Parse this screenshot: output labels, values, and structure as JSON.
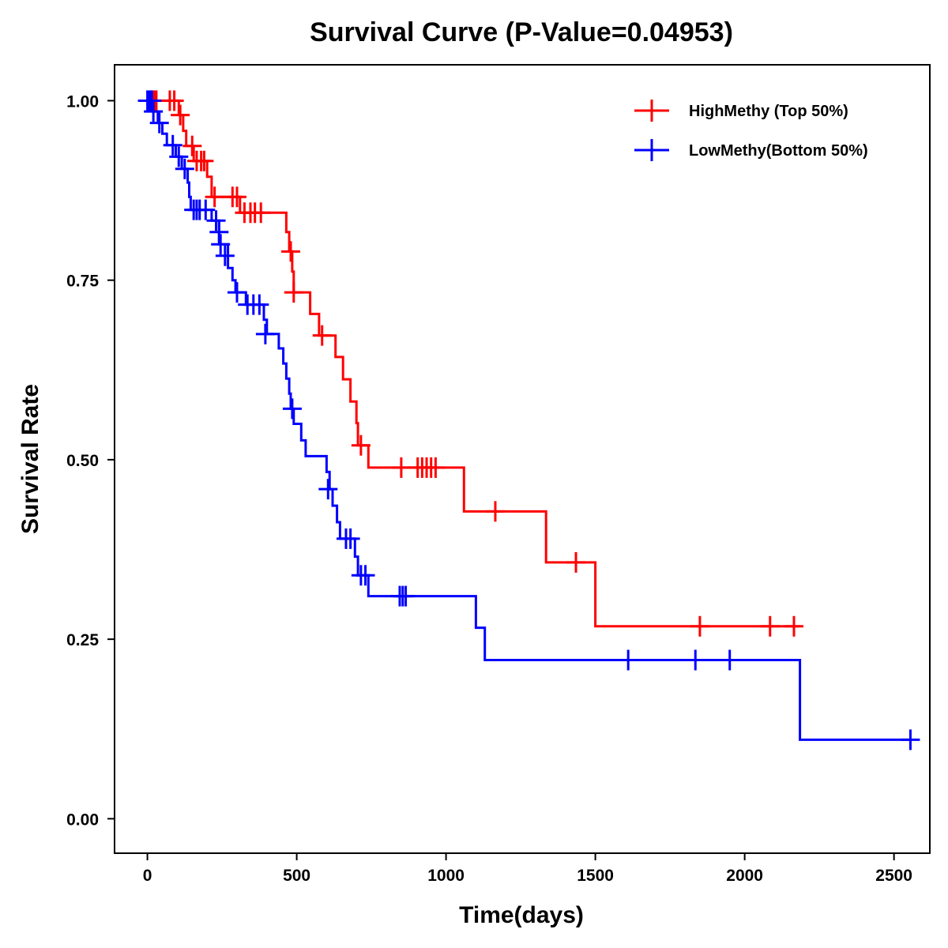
{
  "chart_data": {
    "type": "line",
    "title": "Survival Curve (P-Value=0.04953)",
    "xlabel": "Time(days)",
    "ylabel": "Survival Rate",
    "xlim": [
      -110,
      2620
    ],
    "ylim": [
      -0.048,
      1.05
    ],
    "x_ticks": [
      0,
      500,
      1000,
      1500,
      2000,
      2500
    ],
    "x_tick_labels": [
      "0",
      "500",
      "1000",
      "1500",
      "2000",
      "2500"
    ],
    "y_ticks": [
      0,
      0.25,
      0.5,
      0.75,
      1.0
    ],
    "y_tick_labels": [
      "0.00",
      "0.25",
      "0.50",
      "0.75",
      "1.00"
    ],
    "grid": false,
    "legend_position": "top-right",
    "series": [
      {
        "name": "HighMethy (Top 50%)",
        "color": "#ff0000",
        "steps": [
          [
            0,
            1.0
          ],
          [
            105,
            0.98
          ],
          [
            120,
            0.958
          ],
          [
            130,
            0.937
          ],
          [
            155,
            0.916
          ],
          [
            200,
            0.894
          ],
          [
            215,
            0.866
          ],
          [
            310,
            0.844
          ],
          [
            465,
            0.817
          ],
          [
            475,
            0.79
          ],
          [
            485,
            0.762
          ],
          [
            490,
            0.733
          ],
          [
            545,
            0.703
          ],
          [
            575,
            0.673
          ],
          [
            630,
            0.643
          ],
          [
            655,
            0.612
          ],
          [
            680,
            0.581
          ],
          [
            700,
            0.551
          ],
          [
            705,
            0.52
          ],
          [
            740,
            0.489
          ],
          [
            1060,
            0.428
          ],
          [
            1335,
            0.357
          ],
          [
            1500,
            0.268
          ],
          [
            2185,
            0.268
          ]
        ],
        "censored": [
          [
            10,
            1.0
          ],
          [
            20,
            1.0
          ],
          [
            25,
            1.0
          ],
          [
            30,
            1.0
          ],
          [
            75,
            1.0
          ],
          [
            90,
            1.0
          ],
          [
            110,
            0.98
          ],
          [
            150,
            0.937
          ],
          [
            165,
            0.916
          ],
          [
            180,
            0.916
          ],
          [
            190,
            0.916
          ],
          [
            225,
            0.866
          ],
          [
            285,
            0.866
          ],
          [
            300,
            0.866
          ],
          [
            325,
            0.844
          ],
          [
            345,
            0.844
          ],
          [
            360,
            0.844
          ],
          [
            380,
            0.844
          ],
          [
            480,
            0.79
          ],
          [
            490,
            0.733
          ],
          [
            585,
            0.673
          ],
          [
            715,
            0.52
          ],
          [
            850,
            0.489
          ],
          [
            905,
            0.489
          ],
          [
            920,
            0.489
          ],
          [
            935,
            0.489
          ],
          [
            950,
            0.489
          ],
          [
            965,
            0.489
          ],
          [
            1165,
            0.428
          ],
          [
            1435,
            0.357
          ],
          [
            1850,
            0.268
          ],
          [
            2085,
            0.268
          ],
          [
            2165,
            0.268
          ]
        ]
      },
      {
        "name": "LowMethy(Bottom 50%)",
        "color": "#0000ff",
        "steps": [
          [
            0,
            1.0
          ],
          [
            25,
            0.985
          ],
          [
            35,
            0.969
          ],
          [
            50,
            0.954
          ],
          [
            65,
            0.938
          ],
          [
            95,
            0.922
          ],
          [
            115,
            0.905
          ],
          [
            135,
            0.886
          ],
          [
            140,
            0.866
          ],
          [
            145,
            0.848
          ],
          [
            185,
            0.848
          ],
          [
            215,
            0.833
          ],
          [
            240,
            0.8
          ],
          [
            270,
            0.767
          ],
          [
            285,
            0.75
          ],
          [
            295,
            0.733
          ],
          [
            330,
            0.716
          ],
          [
            390,
            0.695
          ],
          [
            400,
            0.675
          ],
          [
            440,
            0.655
          ],
          [
            455,
            0.634
          ],
          [
            465,
            0.613
          ],
          [
            475,
            0.592
          ],
          [
            480,
            0.571
          ],
          [
            490,
            0.55
          ],
          [
            515,
            0.527
          ],
          [
            530,
            0.505
          ],
          [
            600,
            0.483
          ],
          [
            610,
            0.459
          ],
          [
            620,
            0.436
          ],
          [
            635,
            0.413
          ],
          [
            645,
            0.39
          ],
          [
            695,
            0.365
          ],
          [
            705,
            0.339
          ],
          [
            740,
            0.31
          ],
          [
            1100,
            0.266
          ],
          [
            1130,
            0.221
          ],
          [
            2180,
            0.221
          ],
          [
            2185,
            0.11
          ],
          [
            2555,
            0.11
          ]
        ],
        "censored": [
          [
            0,
            1.0
          ],
          [
            5,
            1.0
          ],
          [
            10,
            1.0
          ],
          [
            15,
            1.0
          ],
          [
            20,
            0.985
          ],
          [
            40,
            0.969
          ],
          [
            85,
            0.938
          ],
          [
            105,
            0.922
          ],
          [
            125,
            0.905
          ],
          [
            155,
            0.848
          ],
          [
            165,
            0.848
          ],
          [
            175,
            0.848
          ],
          [
            195,
            0.848
          ],
          [
            230,
            0.833
          ],
          [
            240,
            0.817
          ],
          [
            245,
            0.8
          ],
          [
            260,
            0.784
          ],
          [
            300,
            0.733
          ],
          [
            335,
            0.716
          ],
          [
            355,
            0.716
          ],
          [
            375,
            0.716
          ],
          [
            395,
            0.675
          ],
          [
            485,
            0.571
          ],
          [
            605,
            0.459
          ],
          [
            665,
            0.39
          ],
          [
            680,
            0.39
          ],
          [
            715,
            0.339
          ],
          [
            730,
            0.339
          ],
          [
            845,
            0.31
          ],
          [
            855,
            0.31
          ],
          [
            865,
            0.31
          ],
          [
            1610,
            0.221
          ],
          [
            1835,
            0.221
          ],
          [
            1950,
            0.221
          ],
          [
            2555,
            0.11
          ]
        ]
      }
    ]
  }
}
